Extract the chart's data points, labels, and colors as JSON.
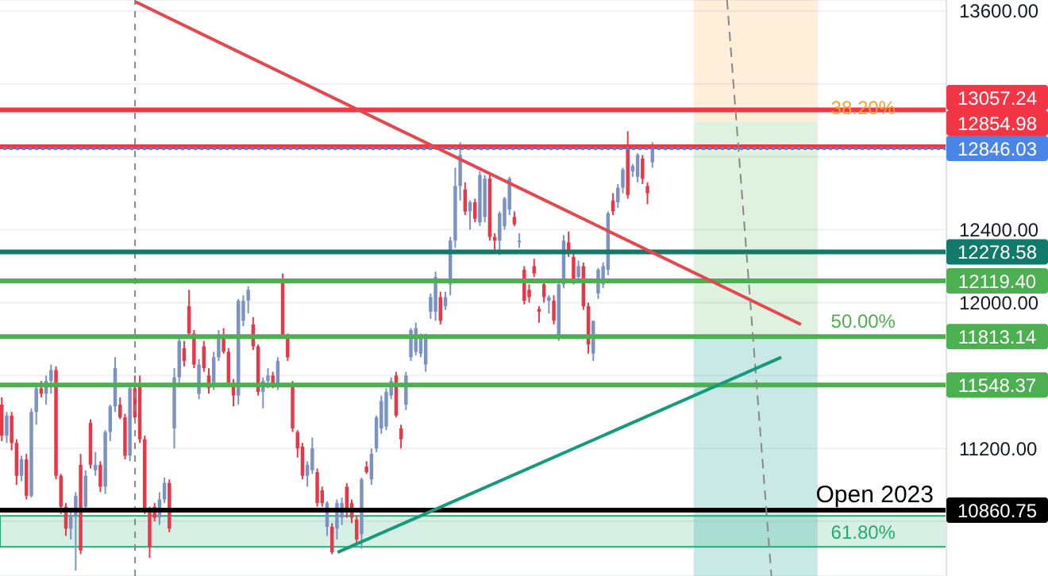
{
  "chart_data": {
    "type": "candlestick",
    "categories": [
      null,
      null,
      null,
      null,
      null,
      null,
      null,
      null,
      null,
      null,
      null,
      null,
      null,
      null,
      null,
      null,
      null,
      null,
      null,
      null,
      null,
      null,
      null,
      null,
      null,
      null,
      null,
      null,
      null,
      null,
      null,
      null,
      null,
      null,
      null,
      null,
      null,
      null,
      null,
      null,
      null,
      null,
      null,
      null,
      null,
      null,
      null,
      null,
      null,
      null,
      null,
      null,
      null,
      null,
      null,
      null,
      null,
      null,
      null,
      null,
      null,
      null,
      null,
      null,
      null,
      null,
      null,
      null,
      null,
      null,
      null,
      null,
      null,
      null,
      null,
      null,
      null,
      null,
      null,
      null,
      null,
      null,
      null,
      null,
      null,
      null,
      null,
      null,
      null,
      null,
      null,
      null,
      null,
      null,
      null,
      null,
      null,
      null,
      null,
      null,
      null,
      null,
      null,
      null,
      null,
      null,
      null,
      null,
      null,
      null,
      null,
      null,
      null,
      null,
      null,
      null,
      null,
      null,
      null,
      null,
      null,
      null,
      null,
      null,
      null,
      null,
      null,
      null,
      null,
      null,
      null,
      null,
      null,
      null,
      null,
      null,
      null,
      null,
      null,
      null,
      null,
      null,
      null,
      null,
      null,
      null,
      null,
      null,
      null,
      null,
      null,
      null,
      null,
      null,
      null,
      null,
      null,
      null,
      null,
      null,
      null,
      null,
      null,
      null,
      null,
      null,
      null,
      null,
      null,
      null,
      null,
      null,
      null,
      null,
      null,
      null,
      null,
      null,
      null,
      null,
      null,
      null,
      null,
      null,
      null,
      null,
      null,
      null,
      null,
      null,
      null,
      null
    ],
    "ohlc": [
      [
        11440,
        11480,
        11240,
        11270
      ],
      [
        11270,
        11400,
        11230,
        11380
      ],
      [
        11380,
        11400,
        11190,
        11230
      ],
      [
        11230,
        11250,
        11000,
        11050
      ],
      [
        11050,
        11160,
        11020,
        11140
      ],
      [
        11140,
        11170,
        10920,
        10940
      ],
      [
        10940,
        11420,
        10930,
        11400
      ],
      [
        11400,
        11560,
        11330,
        11530
      ],
      [
        11530,
        11570,
        11480,
        11500
      ],
      [
        11500,
        11600,
        11440,
        11570
      ],
      [
        11570,
        11660,
        11500,
        11630
      ],
      [
        11630,
        11650,
        11030,
        11050
      ],
      [
        11050,
        11060,
        10840,
        10880
      ],
      [
        10880,
        10900,
        10720,
        10760
      ],
      [
        10760,
        10850,
        10700,
        10830
      ],
      [
        10830,
        10960,
        10530,
        10940
      ],
      [
        11110,
        11170,
        10620,
        10640
      ],
      [
        10880,
        11080,
        10860,
        11050
      ],
      [
        11340,
        11360,
        11090,
        11110
      ],
      [
        11080,
        11180,
        11050,
        11110
      ],
      [
        11110,
        11130,
        10960,
        10990
      ],
      [
        10990,
        11300,
        10950,
        11290
      ],
      [
        11290,
        11440,
        11240,
        11430
      ],
      [
        11430,
        11700,
        11400,
        11640
      ],
      [
        11440,
        11480,
        11360,
        11370
      ],
      [
        11370,
        11390,
        11140,
        11160
      ],
      [
        11160,
        11560,
        11130,
        11530
      ],
      [
        11530,
        11600,
        11360,
        11370
      ],
      [
        11550,
        11600,
        11230,
        11250
      ],
      [
        11250,
        11270,
        10840,
        10860
      ],
      [
        10860,
        10880,
        10600,
        10660
      ],
      [
        10880,
        10900,
        10800,
        10820
      ],
      [
        10820,
        10960,
        10780,
        10920
      ],
      [
        10920,
        11040,
        10900,
        11010
      ],
      [
        11010,
        11030,
        10740,
        10760
      ],
      [
        11310,
        11640,
        11200,
        11590
      ],
      [
        11590,
        11820,
        11560,
        11790
      ],
      [
        11750,
        11790,
        11650,
        11680
      ],
      [
        11980,
        12070,
        11820,
        11830
      ],
      [
        11830,
        11850,
        11640,
        11660
      ],
      [
        11500,
        11690,
        11470,
        11660
      ],
      [
        11760,
        11790,
        11620,
        11640
      ],
      [
        11600,
        11640,
        11500,
        11530
      ],
      [
        11550,
        11730,
        11520,
        11700
      ],
      [
        11700,
        11850,
        11680,
        11820
      ],
      [
        11820,
        11860,
        11720,
        11730
      ],
      [
        11730,
        11750,
        11540,
        11560
      ],
      [
        11560,
        11580,
        11430,
        11490
      ],
      [
        11490,
        12020,
        11440,
        12010
      ],
      [
        11900,
        12040,
        11870,
        12010
      ],
      [
        12010,
        12090,
        11940,
        12070
      ],
      [
        11880,
        11920,
        11740,
        11760
      ],
      [
        11760,
        11770,
        11490,
        11510
      ],
      [
        11510,
        11590,
        11420,
        11570
      ],
      [
        11570,
        11640,
        11530,
        11600
      ],
      [
        11600,
        11620,
        11530,
        11550
      ],
      [
        11550,
        11700,
        11520,
        11680
      ],
      [
        12120,
        12160,
        11800,
        11810
      ],
      [
        11810,
        11830,
        11680,
        11700
      ],
      [
        11550,
        11570,
        11290,
        11310
      ],
      [
        11290,
        11300,
        11150,
        11200
      ],
      [
        11210,
        11230,
        11030,
        11050
      ],
      [
        11050,
        11130,
        10990,
        11110
      ],
      [
        11080,
        11260,
        11060,
        11200
      ],
      [
        11070,
        11090,
        10880,
        10900
      ],
      [
        10970,
        10990,
        10880,
        10900
      ],
      [
        10770,
        10910,
        10720,
        10900
      ],
      [
        10770,
        10790,
        10620,
        10630
      ],
      [
        10760,
        10920,
        10700,
        10900
      ],
      [
        10820,
        10930,
        10780,
        10900
      ],
      [
        10990,
        11010,
        10820,
        10850
      ],
      [
        10900,
        10920,
        10790,
        10820
      ],
      [
        10810,
        10830,
        10680,
        10700
      ],
      [
        10730,
        11040,
        10650,
        11030
      ],
      [
        11100,
        11130,
        11060,
        11070
      ],
      [
        11030,
        11200,
        11000,
        11170
      ],
      [
        11200,
        11380,
        11180,
        11370
      ],
      [
        11310,
        11490,
        11280,
        11460
      ],
      [
        11320,
        11530,
        11300,
        11510
      ],
      [
        11490,
        11590,
        11470,
        11570
      ],
      [
        11600,
        11620,
        11370,
        11380
      ],
      [
        11310,
        11330,
        11200,
        11250
      ],
      [
        11440,
        11620,
        11410,
        11600
      ],
      [
        11700,
        11860,
        11680,
        11850
      ],
      [
        11730,
        11890,
        11710,
        11860
      ],
      [
        11720,
        11830,
        11700,
        11820
      ],
      [
        11660,
        11830,
        11620,
        11810
      ],
      [
        11950,
        12050,
        11910,
        12030
      ],
      [
        11950,
        12170,
        11900,
        12140
      ],
      [
        12030,
        12060,
        11880,
        11900
      ],
      [
        11980,
        12060,
        11960,
        12030
      ],
      [
        12100,
        12360,
        12040,
        12340
      ],
      [
        12340,
        12740,
        12300,
        12640
      ],
      [
        12640,
        12880,
        12560,
        12810
      ],
      [
        12620,
        12660,
        12480,
        12500
      ],
      [
        12500,
        12560,
        12400,
        12550
      ],
      [
        12550,
        12570,
        12440,
        12460
      ],
      [
        12440,
        12720,
        12420,
        12700
      ],
      [
        12470,
        12700,
        12440,
        12680
      ],
      [
        12680,
        12700,
        12340,
        12360
      ],
      [
        12360,
        12380,
        12290,
        12340
      ],
      [
        12340,
        12500,
        12260,
        12490
      ],
      [
        12420,
        12580,
        12400,
        12570
      ],
      [
        12510,
        12690,
        12480,
        12680
      ],
      [
        12470,
        12500,
        12420,
        12430
      ],
      [
        12340,
        12380,
        12300,
        12340
      ],
      [
        12180,
        12200,
        11990,
        12010
      ],
      [
        12070,
        12100,
        12000,
        12030
      ],
      [
        12200,
        12240,
        12140,
        12160
      ],
      [
        11965,
        11980,
        11890,
        11950
      ],
      [
        12100,
        12130,
        12000,
        12030
      ],
      [
        12010,
        12040,
        11940,
        12030
      ],
      [
        12010,
        12040,
        11880,
        11900
      ],
      [
        11810,
        12110,
        11790,
        12100
      ],
      [
        12100,
        12370,
        12080,
        12340
      ],
      [
        12330,
        12390,
        12250,
        12270
      ],
      [
        12250,
        12270,
        12100,
        12120
      ],
      [
        12140,
        12230,
        12120,
        12200
      ],
      [
        12200,
        12220,
        11960,
        11980
      ],
      [
        11980,
        12000,
        11720,
        11770
      ],
      [
        11720,
        11900,
        11680,
        11900
      ],
      [
        12050,
        12190,
        12020,
        12180
      ],
      [
        12100,
        12220,
        12080,
        12200
      ],
      [
        12180,
        12500,
        12150,
        12490
      ],
      [
        12560,
        12600,
        12480,
        12500
      ],
      [
        12550,
        12650,
        12520,
        12630
      ],
      [
        12630,
        12740,
        12600,
        12730
      ],
      [
        12850,
        12940,
        12570,
        12590
      ],
      [
        12720,
        12760,
        12690,
        12750
      ],
      [
        12690,
        12820,
        12660,
        12810
      ],
      [
        12790,
        12810,
        12650,
        12680
      ],
      [
        12640,
        12660,
        12540,
        12600
      ],
      [
        12770,
        12880,
        12740,
        12846.03
      ],
      null,
      null,
      null,
      null,
      null,
      null,
      null,
      null,
      null,
      null,
      null,
      null,
      null,
      null,
      null,
      null,
      null,
      null,
      null,
      null,
      null,
      null,
      null,
      null,
      null,
      null,
      null,
      null,
      null,
      null,
      null,
      null,
      null,
      null,
      null,
      null,
      null,
      null,
      null,
      null,
      null,
      null,
      null,
      null,
      null,
      null,
      null,
      null,
      null,
      null,
      null,
      null,
      null,
      null,
      null,
      null,
      null,
      null,
      null
    ],
    "series": [
      {
        "type": "line",
        "color": "#e5474f",
        "values": [
          null,
          null,
          null,
          null,
          null,
          null,
          null,
          null,
          null,
          null,
          null,
          null,
          null,
          null,
          null,
          null,
          null,
          null,
          null,
          null,
          null,
          null,
          null,
          null,
          null,
          null,
          null,
          13650,
          null,
          null,
          null,
          null,
          null,
          null,
          null,
          null,
          null,
          null,
          null,
          null,
          null,
          null,
          null,
          null,
          null,
          null,
          null,
          null,
          null,
          null,
          null,
          null,
          null,
          null,
          null,
          null,
          null,
          null,
          null,
          null,
          null,
          null,
          null,
          null,
          null,
          null,
          null,
          null,
          null,
          null,
          null,
          null,
          null,
          null,
          null,
          null,
          null,
          null,
          null,
          null,
          null,
          null,
          null,
          null,
          null,
          null,
          null,
          null,
          null,
          null,
          null,
          null,
          null,
          null,
          null,
          null,
          null,
          null,
          null,
          null,
          null,
          null,
          null,
          null,
          null,
          null,
          null,
          null,
          null,
          null,
          null,
          null,
          null,
          null,
          null,
          null,
          null,
          null,
          null,
          null,
          null,
          null,
          null,
          null,
          null,
          null,
          null,
          null,
          null,
          null,
          null,
          null,
          null,
          null,
          null,
          null,
          null,
          null,
          null,
          null,
          null,
          null,
          null,
          null,
          null,
          null,
          null,
          null,
          null,
          null,
          null,
          null,
          null,
          null,
          null,
          null,
          null,
          null,
          null,
          null,
          null,
          null,
          11880,
          null,
          null,
          null,
          null,
          null,
          null,
          null,
          null,
          null,
          null,
          null,
          null,
          null,
          null,
          null,
          null,
          null,
          null,
          null,
          null,
          null,
          null,
          null,
          null,
          null,
          null,
          null,
          null,
          null
        ]
      },
      {
        "type": "line",
        "color": "#888888",
        "line_style": "dashed",
        "values": [
          null,
          null,
          null,
          null,
          null,
          null,
          null,
          null,
          null,
          null,
          null,
          null,
          null,
          null,
          null,
          null,
          null,
          null,
          null,
          null,
          null,
          null,
          null,
          null,
          null,
          null,
          null,
          null,
          null,
          null,
          null,
          null,
          null,
          null,
          null,
          null,
          null,
          null,
          null,
          null,
          null,
          null,
          null,
          null,
          null,
          null,
          null,
          null,
          null,
          null,
          null,
          null,
          null,
          null,
          null,
          null,
          null,
          null,
          null,
          null,
          null,
          null,
          null,
          null,
          null,
          null,
          null,
          null,
          null,
          null,
          null,
          null,
          null,
          null,
          null,
          null,
          null,
          null,
          null,
          null,
          null,
          null,
          null,
          null,
          null,
          null,
          null,
          null,
          null,
          null,
          null,
          null,
          null,
          null,
          null,
          null,
          null,
          null,
          null,
          null,
          null,
          null,
          null,
          null,
          null,
          null,
          null,
          null,
          null,
          null,
          null,
          null,
          null,
          null,
          null,
          null,
          null,
          null,
          null,
          null,
          null,
          null,
          null,
          null,
          null,
          null,
          null,
          null,
          null,
          null,
          null,
          null,
          null,
          null,
          null,
          null,
          null,
          null,
          null,
          null,
          null,
          null,
          null,
          null,
          null,
          null,
          null,
          13660,
          null,
          null,
          null,
          null,
          null,
          null,
          null,
          null,
          10500,
          null,
          null,
          null,
          null,
          null,
          null,
          null,
          null,
          null,
          null,
          null,
          null,
          null,
          null,
          null,
          null,
          null,
          null,
          null,
          null,
          null,
          null,
          null,
          null,
          null,
          null,
          null,
          null,
          null,
          null,
          null,
          null,
          null,
          null,
          null
        ]
      },
      {
        "type": "line",
        "color": "#159a7c",
        "values": [
          null,
          null,
          null,
          null,
          null,
          null,
          null,
          null,
          null,
          null,
          null,
          null,
          null,
          null,
          null,
          null,
          null,
          null,
          null,
          null,
          null,
          null,
          null,
          null,
          null,
          null,
          null,
          null,
          null,
          null,
          null,
          null,
          null,
          null,
          null,
          null,
          null,
          null,
          null,
          null,
          null,
          null,
          null,
          null,
          null,
          null,
          null,
          null,
          null,
          null,
          null,
          null,
          null,
          null,
          null,
          null,
          null,
          null,
          null,
          null,
          null,
          null,
          null,
          null,
          null,
          null,
          null,
          null,
          10630,
          null,
          null,
          null,
          null,
          null,
          null,
          null,
          null,
          null,
          null,
          null,
          null,
          null,
          null,
          null,
          null,
          null,
          null,
          null,
          null,
          null,
          null,
          null,
          null,
          null,
          null,
          null,
          null,
          null,
          null,
          null,
          null,
          null,
          null,
          null,
          null,
          null,
          null,
          null,
          null,
          null,
          null,
          null,
          null,
          null,
          null,
          null,
          null,
          null,
          null,
          null,
          null,
          null,
          null,
          null,
          null,
          null,
          null,
          null,
          null,
          null,
          null,
          null,
          null,
          null,
          null,
          null,
          null,
          null,
          null,
          null,
          null,
          null,
          null,
          null,
          null,
          null,
          null,
          null,
          null,
          null,
          null,
          null,
          null,
          null,
          null,
          null,
          null,
          null,
          11700,
          null,
          null,
          null,
          null,
          null,
          null,
          null,
          null,
          null,
          null,
          null,
          null,
          null,
          null,
          null,
          null,
          null,
          null,
          null,
          null,
          null,
          null,
          null,
          null,
          null,
          null,
          null,
          null,
          null,
          null,
          null,
          null,
          null
        ]
      }
    ],
    "ylim": [
      10500,
      13660
    ],
    "yticks": [
      {
        "value": 10800,
        "label": null
      },
      {
        "value": 11200,
        "label": "11200.00"
      },
      {
        "value": 11600,
        "label": null
      },
      {
        "value": 12000,
        "label": "12000.00"
      },
      {
        "value": 12400,
        "label": "12400.00"
      },
      {
        "value": 12800,
        "label": null
      },
      {
        "value": 13200,
        "label": null
      },
      {
        "value": 13600,
        "label": "13600.00"
      }
    ],
    "grid": "y",
    "tick_labels": "y",
    "ref_lines": [
      {
        "axis": "y",
        "value": 13057.24,
        "color": "#f23645",
        "label": "13057.24"
      },
      {
        "axis": "y",
        "value": 12854.98,
        "color": "#f23645",
        "label": "12854.98"
      },
      {
        "axis": "y",
        "value": 12846.03,
        "color": "#4a86e8",
        "label": "12846.03",
        "line_style": "dotted"
      },
      {
        "axis": "y",
        "value": 12278.58,
        "color": "#127a6a",
        "label": "12278.58",
        "line_style": "solid"
      },
      {
        "axis": "y",
        "value": 12119.4,
        "color": "#4caf50",
        "label": "12119.40"
      },
      {
        "axis": "y",
        "value": 11813.14,
        "color": "#4caf50",
        "label": "11813.14"
      },
      {
        "axis": "y",
        "value": 11548.37,
        "color": "#4caf50",
        "label": "11548.37"
      },
      {
        "axis": "y",
        "value": 10860.75,
        "color": "#000000",
        "label": "10860.75"
      }
    ],
    "annotations": [
      {
        "text": "Open 2023",
        "y": 10860.75
      }
    ],
    "bands": [
      {
        "axis": "y",
        "from": 10660,
        "to": 10830,
        "color": "#22ab6e",
        "label": "61.80%"
      },
      {
        "axis": "y",
        "from": 12991,
        "to": 13660,
        "color": "#f7a133",
        "label": "38.20%"
      },
      {
        "axis": "y",
        "from": 11817,
        "to": 12991,
        "color": "#4caf50",
        "label": "50.00%"
      },
      {
        "axis": "y",
        "from": 10500,
        "to": 11817,
        "color": "#26a69a"
      }
    ]
  }
}
